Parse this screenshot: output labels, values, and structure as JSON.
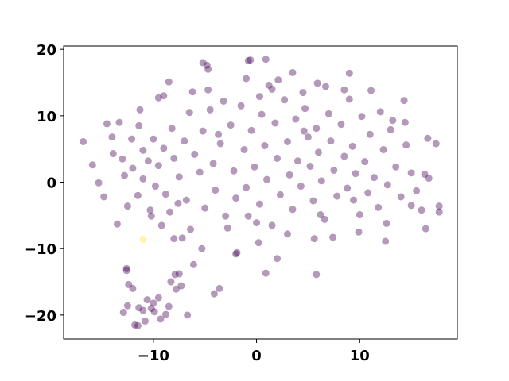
{
  "chart_data": {
    "type": "scatter",
    "xlim": [
      -18.7,
      19.46
    ],
    "ylim": [
      -23.6,
      20.5
    ],
    "xticks": [
      {
        "value": -10,
        "label": "−10"
      },
      0,
      10
    ],
    "yticks": [
      {
        "value": -20,
        "label": "−20"
      },
      {
        "value": -10,
        "label": "−10"
      },
      0,
      10,
      20
    ],
    "alpha": 0.4,
    "series": [
      {
        "color": "#440154",
        "x": [
          -16.8,
          -15.9,
          -15.3,
          -14.8,
          -14.5,
          -13.9,
          -13.5,
          -13.3,
          -12.8,
          -12.6,
          -12.6,
          -12.4,
          -12.0,
          -12.5,
          -11.8,
          -11.5,
          -11.3,
          -11.4,
          -11.0,
          -12.1,
          -10.3,
          -10.2,
          -9.8,
          -9.5,
          -9.0,
          -8.5,
          -8.0,
          -7.9,
          -7.5,
          -8.4,
          -7.6,
          -6.4,
          -6.1,
          -5.3,
          -5.2,
          -4.8,
          -4.7,
          -4.7,
          -2.0,
          -1.9,
          -0.8,
          -0.6,
          0.9,
          1.2,
          1.5,
          0.9,
          3.5,
          4.5,
          5.9,
          6.7,
          5.8,
          9.0,
          11.1,
          13.2,
          14.4,
          14.3,
          15.0,
          16.0,
          16.4,
          16.6,
          17.4,
          17.7,
          17.7,
          16.7,
          16.3,
          12.6,
          12.5,
          9.4,
          6.2,
          5.6,
          2.0,
          -0.8,
          0.2,
          -3.6,
          -4.1,
          -9.3,
          -9.9,
          -11.0,
          -10.6,
          -9.5,
          -8.5,
          -10.2,
          -11.4,
          -10.8,
          -8.8,
          -12.9,
          -10.0,
          -7.8,
          -7.3,
          -8.3,
          -6.7,
          -13,
          -12,
          -11.5,
          -11,
          -10.5,
          -10,
          -9.5,
          -9,
          -8.8,
          -8.2,
          -8,
          -7.5,
          -7,
          -6.8,
          -6.5,
          -6,
          -5.5,
          -5.2,
          -5,
          -4.5,
          -4.2,
          -4,
          -3.5,
          -3.2,
          -3,
          -2.5,
          -2.2,
          -2,
          -1.5,
          -1.2,
          -1,
          -0.5,
          -0.2,
          0.3,
          0.5,
          0.8,
          1,
          1.5,
          1.8,
          2,
          2.3,
          2.7,
          3,
          3.2,
          3.5,
          3.8,
          4,
          4.3,
          4.7,
          5,
          5.2,
          5.5,
          5.8,
          6,
          6.3,
          6.6,
          7,
          7.2,
          7.5,
          7.8,
          8.2,
          8.5,
          8.8,
          9,
          9.3,
          9.6,
          10,
          10.2,
          10.5,
          10.8,
          11,
          11.4,
          11.8,
          12,
          12.3,
          12.7,
          13,
          13.5,
          14,
          14.5,
          15,
          15.5,
          -14,
          -12.5,
          -9.2,
          -7.2,
          -2.8,
          0,
          3,
          7.4,
          9.9,
          -6.2,
          -1,
          2.1,
          8.5,
          -3.7,
          4.6,
          0.3
        ],
        "y": [
          6.1,
          2.6,
          -0.1,
          -2.2,
          8.8,
          4.3,
          -6.3,
          9.0,
          1.0,
          -13.0,
          -13.3,
          -15.4,
          -16.0,
          -18.6,
          -21.5,
          -21.6,
          10.9,
          8.5,
          4.8,
          6.5,
          -4.2,
          -5.1,
          -0.6,
          12.7,
          13.0,
          15.1,
          -8.5,
          -13.9,
          -13.8,
          -4.5,
          -3.2,
          -7.1,
          -12.4,
          -10.0,
          18.0,
          17.6,
          17.0,
          13.9,
          -10.8,
          -10.6,
          18.3,
          18.4,
          18.5,
          14.6,
          14.0,
          -13.7,
          16.5,
          13.5,
          14.9,
          14.4,
          -13.9,
          16.4,
          13.8,
          9.3,
          9.0,
          12.3,
          -3.5,
          -4.2,
          -7.0,
          6.6,
          5.8,
          -3.6,
          -4.5,
          0.6,
          1.2,
          -6.2,
          -8.9,
          -2.7,
          -4.9,
          -8.5,
          -11.5,
          -5.1,
          -9.1,
          -16.0,
          -16.8,
          -20.6,
          -19.5,
          -19.3,
          -17.7,
          -17.4,
          -18.7,
          -19.0,
          -18.9,
          -20.9,
          -19.9,
          -19.6,
          -18.2,
          -16.1,
          -15.6,
          -15.0,
          -20.0,
          3.5,
          2.1,
          -2,
          0.5,
          3.2,
          6.5,
          2.5,
          5.1,
          -1.8,
          8.1,
          3.6,
          0.8,
          6.2,
          -2.7,
          10.5,
          4.2,
          1.5,
          7.7,
          -3.9,
          10.9,
          2.8,
          -1.2,
          5.8,
          12.2,
          -5.1,
          8.6,
          1.7,
          -2.4,
          11.5,
          4.9,
          -0.8,
          7.8,
          2.3,
          -3.3,
          10.2,
          5.5,
          0.4,
          -6.5,
          8.9,
          3.6,
          -1.9,
          12.4,
          6.1,
          1.1,
          -4.1,
          9.5,
          3.2,
          -0.6,
          11.1,
          6.8,
          2.4,
          -2.8,
          8.1,
          4.5,
          0.2,
          -5.6,
          10.3,
          6.2,
          1.8,
          -2.1,
          8.7,
          3.9,
          -0.9,
          12.5,
          5.4,
          1.3,
          -4.9,
          9.9,
          3.1,
          -1.6,
          7.2,
          0.7,
          -3.8,
          10.6,
          4.9,
          -0.4,
          7.9,
          2.3,
          -2.2,
          5.6,
          1.4,
          -1.3,
          6.8,
          -3.6,
          -6.5,
          -8.4,
          -6.9,
          -6.1,
          -7.8,
          -8.3,
          -7.5,
          13.6,
          15.6,
          15.4,
          13.9,
          7.2,
          7.7,
          12.9
        ]
      },
      {
        "color": "#fde725",
        "x": [
          -11.0
        ],
        "y": [
          -8.6
        ]
      }
    ]
  }
}
